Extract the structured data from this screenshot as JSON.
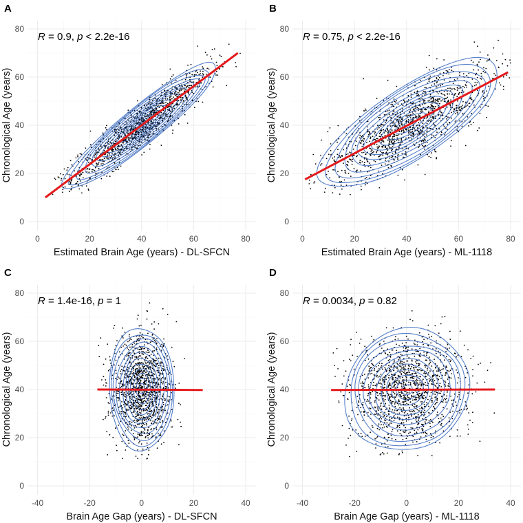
{
  "chart_data": [
    {
      "panel": "A",
      "type": "scatter",
      "xlabel": "Estimated Brain Age (years) - DL-SFCN",
      "ylabel": "Chronological Age (years)",
      "xlim": [
        -2,
        82
      ],
      "ylim": [
        -3,
        84
      ],
      "xticks": [
        0,
        20,
        40,
        60,
        80
      ],
      "yticks": [
        0,
        20,
        40,
        60,
        80
      ],
      "annotation": {
        "r_sym": "R",
        "r_text": " = 0.9, ",
        "p_sym": "p",
        "p_text": " < 2.2e-16"
      },
      "fit_line": {
        "x": [
          3,
          77
        ],
        "y": [
          10,
          70
        ]
      },
      "point_spread": {
        "x_mean": 40,
        "x_sd": 13,
        "x_range": [
          3,
          78
        ],
        "residual_sd": 4.5
      },
      "grid": true
    },
    {
      "panel": "B",
      "type": "scatter",
      "xlabel": "Estimated Brain Age (years) - ML-1118",
      "ylabel": "Chronological Age (years)",
      "xlim": [
        -2,
        82
      ],
      "ylim": [
        -3,
        84
      ],
      "xticks": [
        0,
        20,
        40,
        60,
        80
      ],
      "yticks": [
        0,
        20,
        40,
        60,
        80
      ],
      "annotation": {
        "r_sym": "R",
        "r_text": " = 0.75, ",
        "p_sym": "p",
        "p_text": " < 2.2e-16"
      },
      "fit_line": {
        "x": [
          1,
          79
        ],
        "y": [
          17.5,
          62
        ]
      },
      "point_spread": {
        "x_mean": 42,
        "x_sd": 16,
        "x_range": [
          1,
          80
        ],
        "residual_sd": 8
      },
      "grid": true
    },
    {
      "panel": "C",
      "type": "scatter",
      "xlabel": "Brain Age Gap (years) - DL-SFCN",
      "ylabel": "Chronological Age (years)",
      "xlim": [
        -42,
        42
      ],
      "ylim": [
        -3,
        84
      ],
      "xticks": [
        -40,
        -20,
        0,
        20,
        40
      ],
      "yticks": [
        0,
        20,
        40,
        60,
        80
      ],
      "annotation": {
        "r_sym": "R",
        "r_text": " = 1.4e-16, ",
        "p_sym": "p",
        "p_text": " = 1"
      },
      "fit_line": {
        "x": [
          -17,
          23.5
        ],
        "y": [
          40,
          39.8
        ]
      },
      "point_spread": {
        "x_mean": 0,
        "x_sd": 5.5,
        "x_range": [
          -17,
          23.5
        ],
        "y_mean": 40,
        "y_sd": 11
      },
      "grid": true
    },
    {
      "panel": "D",
      "type": "scatter",
      "xlabel": "Brain Age Gap (years) - ML-1118",
      "ylabel": "Chronological Age (years)",
      "xlim": [
        -42,
        42
      ],
      "ylim": [
        -3,
        84
      ],
      "xticks": [
        -40,
        -20,
        0,
        20,
        40
      ],
      "yticks": [
        0,
        20,
        40,
        60,
        80
      ],
      "annotation": {
        "r_sym": "R",
        "r_text": " = 0.0034, ",
        "p_sym": "p",
        "p_text": " = 0.82"
      },
      "fit_line": {
        "x": [
          -29,
          34
        ],
        "y": [
          39.8,
          40
        ]
      },
      "point_spread": {
        "x_mean": 0,
        "x_sd": 11,
        "x_range": [
          -29,
          34
        ],
        "y_mean": 40,
        "y_sd": 11
      },
      "grid": true
    }
  ],
  "colors": {
    "points": "#000000",
    "contours": "#4472c4",
    "fit_line": "#e41a1c",
    "grid": "#ebebeb"
  }
}
